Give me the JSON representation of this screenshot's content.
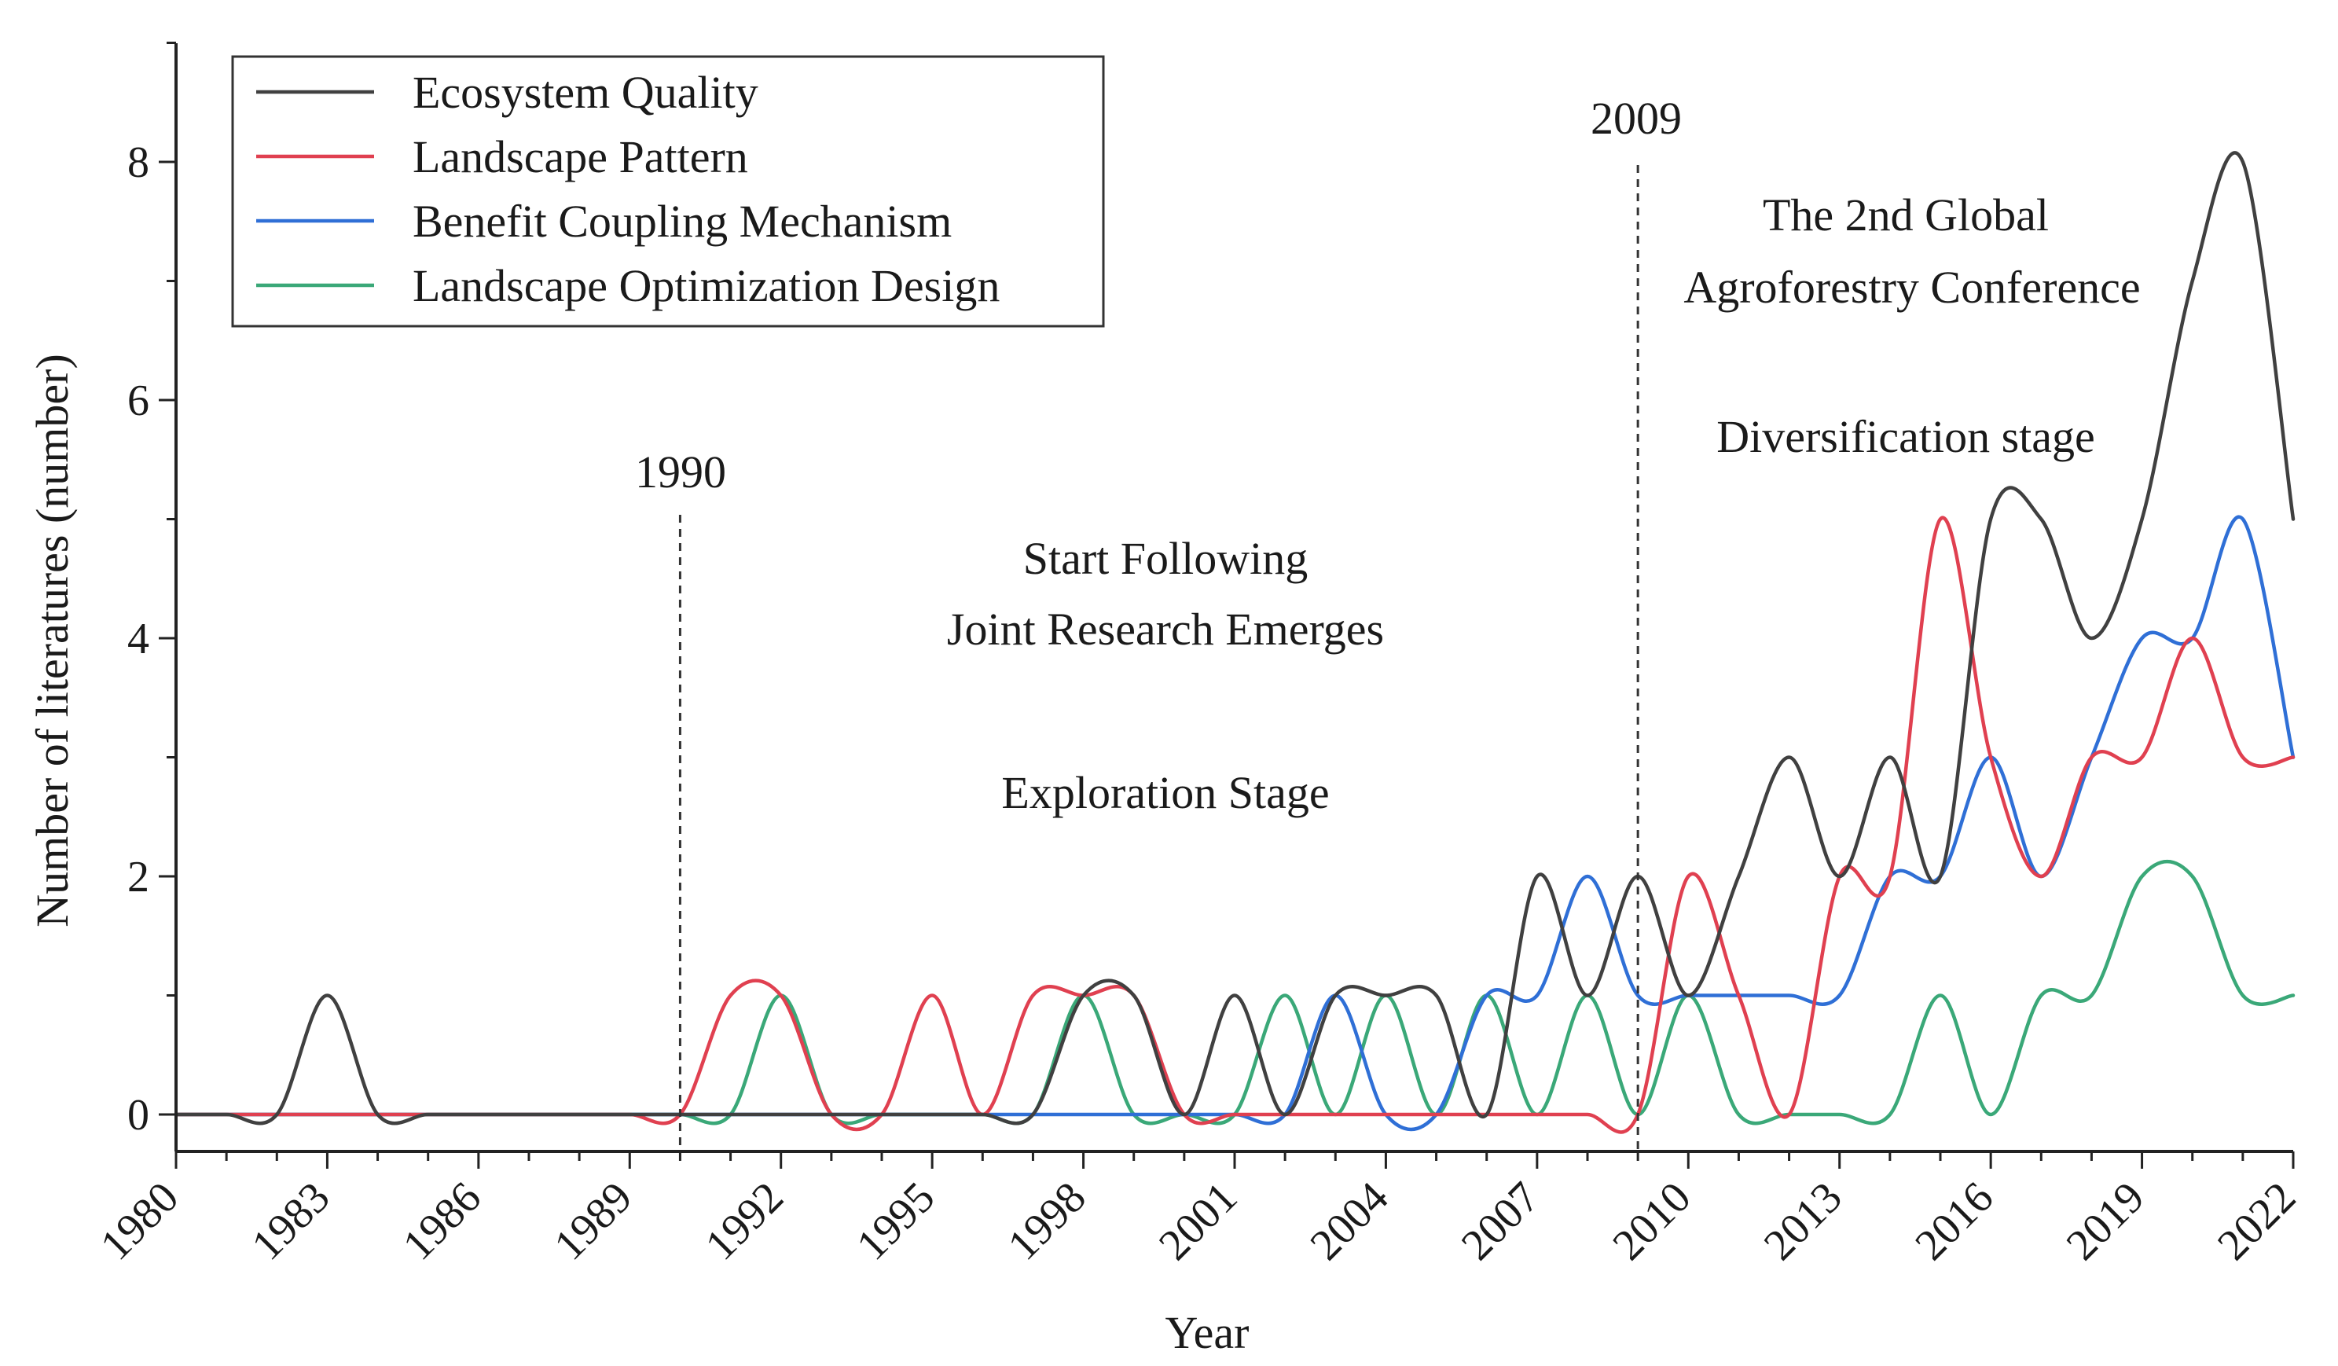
{
  "chart_data": {
    "type": "line",
    "title": "",
    "xlabel": "Year",
    "ylabel": "Number of literatures (number)",
    "xlim": [
      1980,
      2022
    ],
    "ylim": [
      -0.3,
      9
    ],
    "x_ticks": [
      1980,
      1983,
      1986,
      1989,
      1992,
      1995,
      1998,
      2001,
      2004,
      2007,
      2010,
      2013,
      2016,
      2019,
      2022
    ],
    "y_ticks": [
      0,
      2,
      4,
      6,
      8
    ],
    "x": [
      1980,
      1981,
      1982,
      1983,
      1984,
      1985,
      1986,
      1987,
      1988,
      1989,
      1990,
      1991,
      1992,
      1993,
      1994,
      1995,
      1996,
      1997,
      1998,
      1999,
      2000,
      2001,
      2002,
      2003,
      2004,
      2005,
      2006,
      2007,
      2008,
      2009,
      2010,
      2011,
      2012,
      2013,
      2014,
      2015,
      2016,
      2017,
      2018,
      2019,
      2020,
      2021,
      2022
    ],
    "series": [
      {
        "name": "Ecosystem Quality",
        "color": "#404040",
        "values": [
          0,
          0,
          0,
          1,
          0,
          0,
          0,
          0,
          0,
          0,
          0,
          0,
          0,
          0,
          0,
          0,
          0,
          0,
          1,
          1,
          0,
          1,
          0,
          1,
          1,
          1,
          0,
          2,
          1,
          2,
          1,
          2,
          3,
          2,
          3,
          2,
          5,
          5,
          4,
          5,
          7,
          8,
          5
        ]
      },
      {
        "name": "Landscape Pattern",
        "color": "#e04050",
        "values": [
          0,
          0,
          0,
          0,
          0,
          0,
          0,
          0,
          0,
          0,
          0,
          1,
          1,
          0,
          0,
          1,
          0,
          1,
          1,
          1,
          0,
          0,
          0,
          0,
          0,
          0,
          0,
          0,
          0,
          0,
          2,
          1,
          0,
          2,
          2,
          5,
          3,
          2,
          3,
          3,
          4,
          3,
          3
        ]
      },
      {
        "name": "Benefit Coupling Mechanism",
        "color": "#2f6fd6",
        "values": [
          0,
          0,
          0,
          0,
          0,
          0,
          0,
          0,
          0,
          0,
          0,
          0,
          0,
          0,
          0,
          0,
          0,
          0,
          0,
          0,
          0,
          0,
          0,
          1,
          0,
          0,
          1,
          1,
          2,
          1,
          1,
          1,
          1,
          1,
          2,
          2,
          3,
          2,
          3,
          4,
          4,
          5,
          3
        ]
      },
      {
        "name": "Landscape Optimization Design",
        "color": "#3aa878",
        "values": [
          0,
          0,
          0,
          0,
          0,
          0,
          0,
          0,
          0,
          0,
          0,
          0,
          1,
          0,
          0,
          0,
          0,
          0,
          1,
          0,
          0,
          0,
          1,
          0,
          1,
          0,
          1,
          0,
          1,
          0,
          1,
          0,
          0,
          0,
          0,
          1,
          0,
          1,
          1,
          2,
          2,
          1,
          1
        ]
      }
    ],
    "vlines": [
      {
        "x": 1990,
        "label": "1990"
      },
      {
        "x": 2009,
        "label": "2009"
      }
    ],
    "annotations": [
      {
        "id": "start-following",
        "text": "Start Following"
      },
      {
        "id": "joint-research",
        "text": "Joint Research Emerges"
      },
      {
        "id": "exploration",
        "text": "Exploration Stage"
      },
      {
        "id": "global-conf-1",
        "text": "The 2nd Global"
      },
      {
        "id": "global-conf-2",
        "text": "Agroforestry Conference"
      },
      {
        "id": "diversification",
        "text": "Diversification stage"
      }
    ],
    "legend_position": "top-left"
  }
}
